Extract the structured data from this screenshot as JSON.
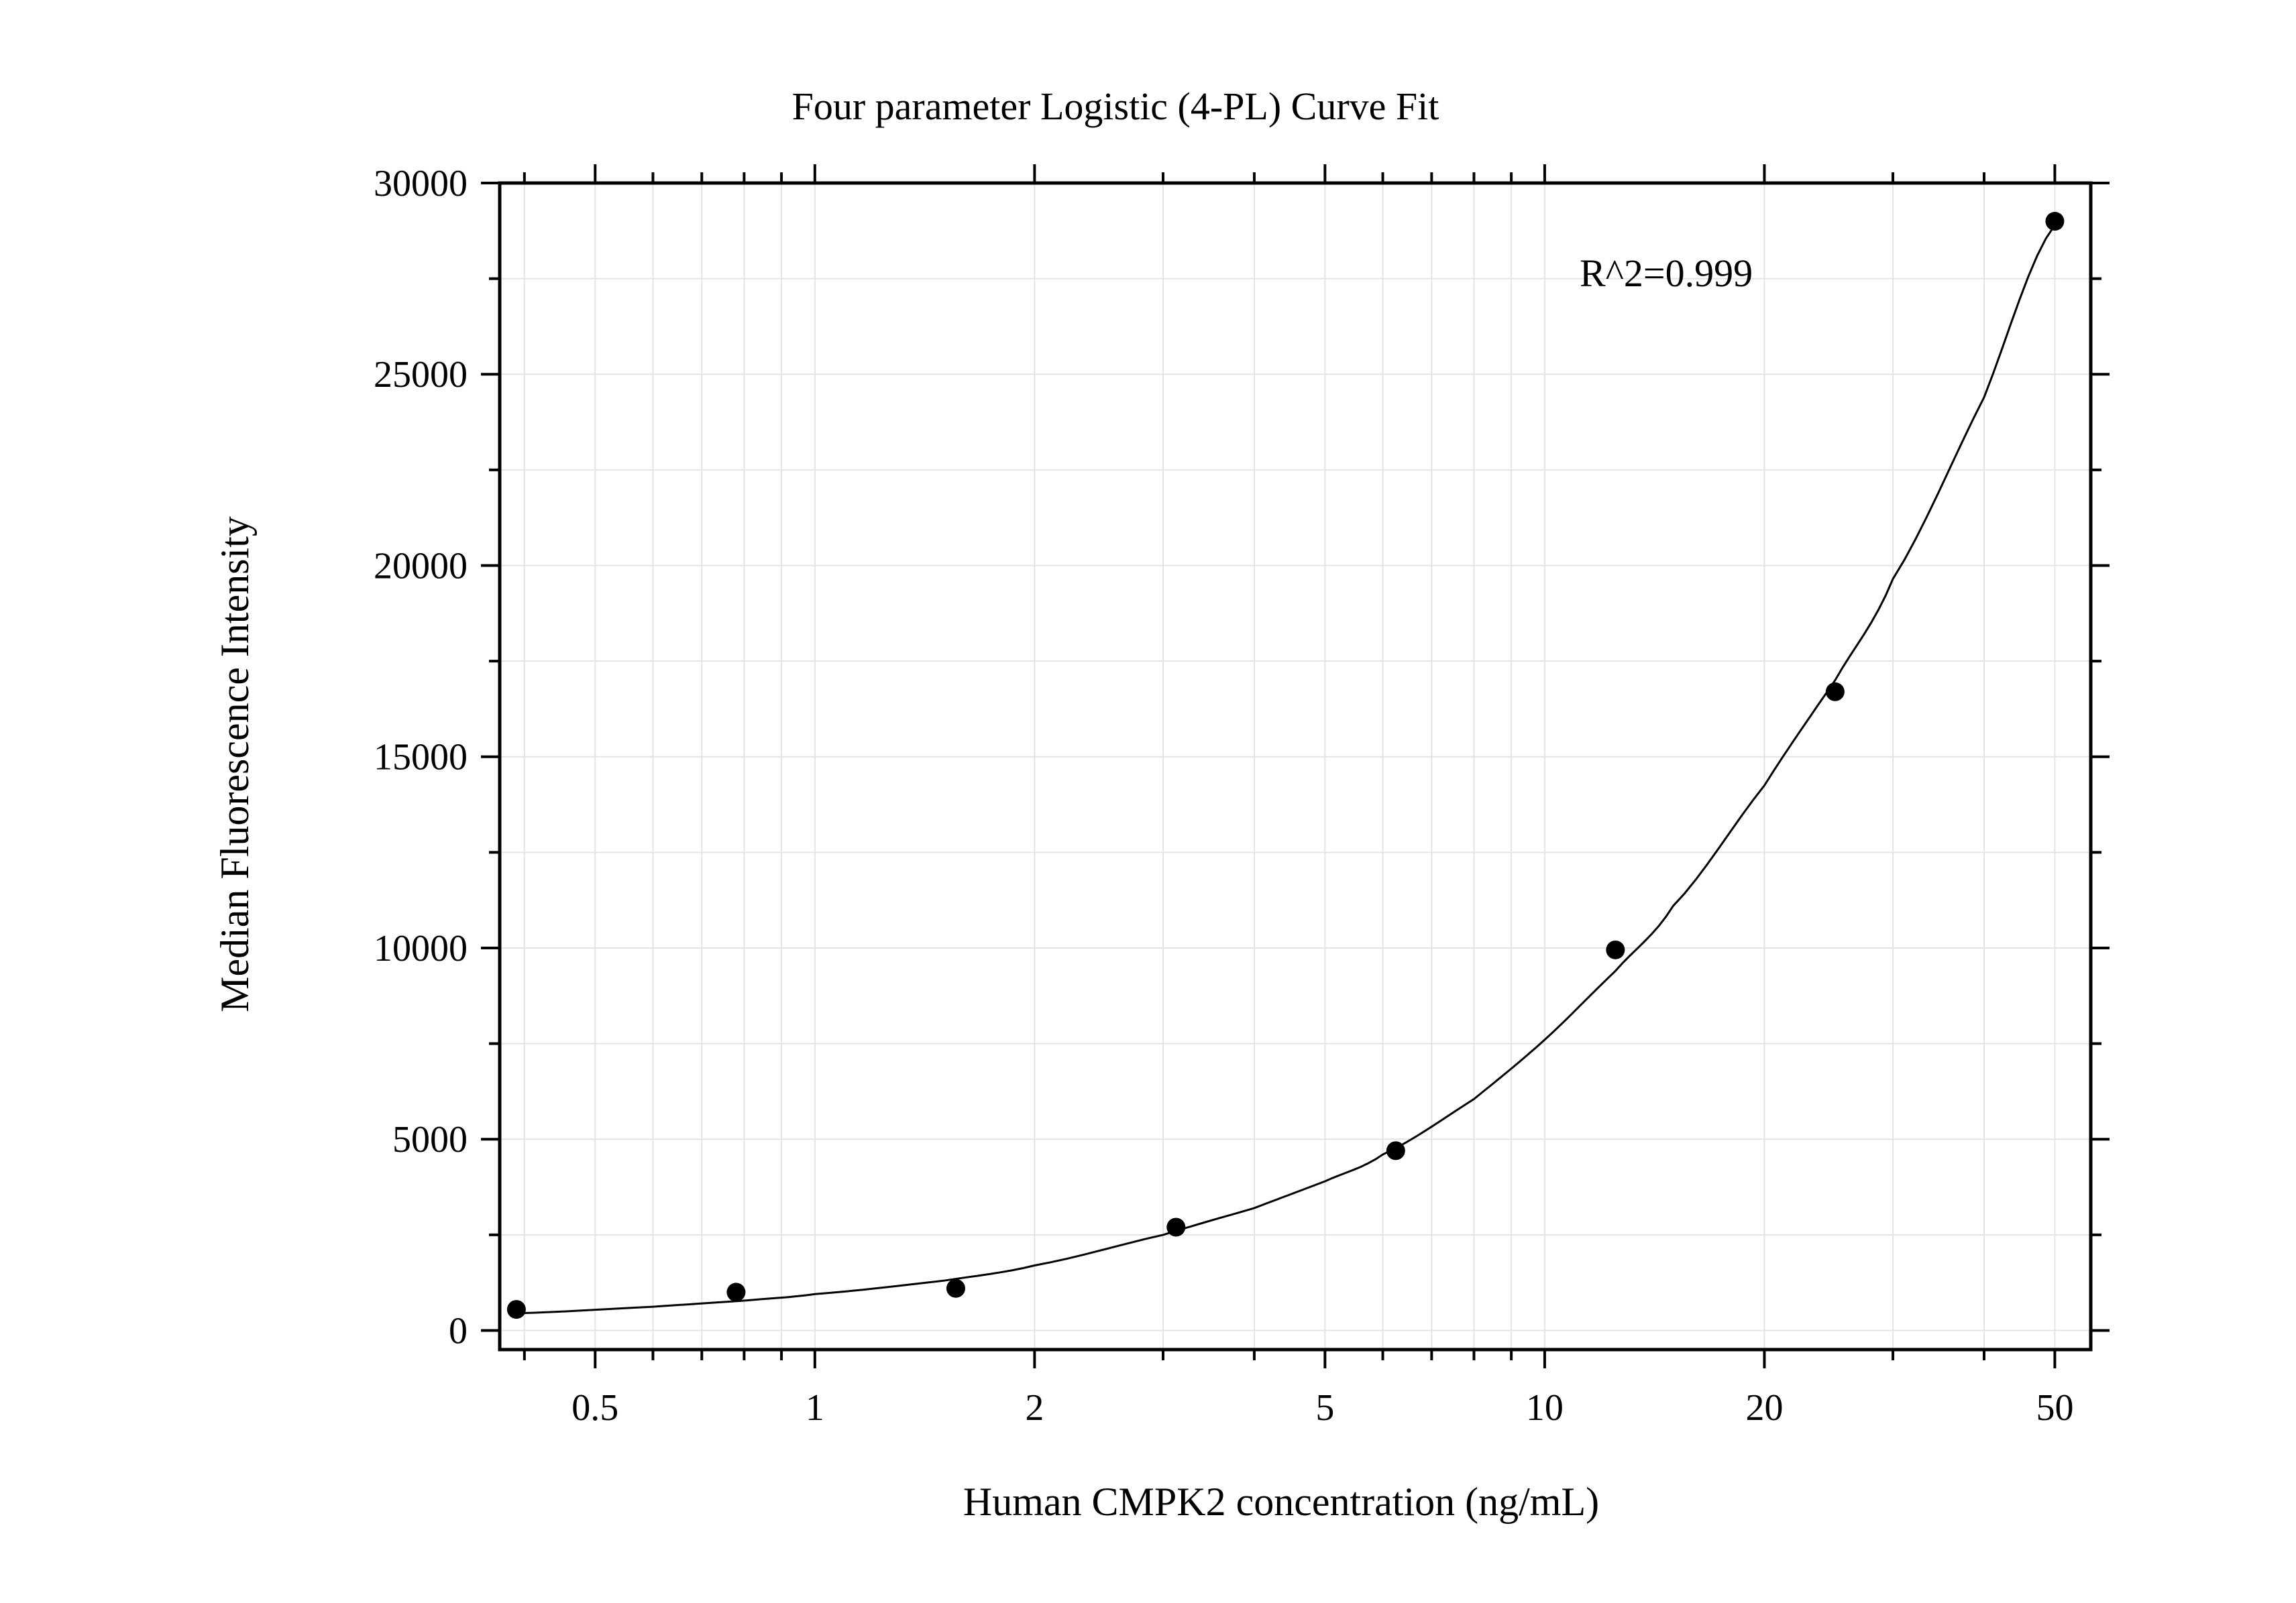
{
  "chart_data": {
    "type": "scatter",
    "title": "Four parameter Logistic (4-PL) Curve Fit",
    "xlabel": "Human CMPK2 concentration (ng/mL)",
    "ylabel": "Median Fluorescence Intensity",
    "x_scale": "log",
    "xlim": [
      0.37,
      56
    ],
    "ylim": [
      -500,
      30000
    ],
    "x_ticks": [
      0.5,
      1,
      2,
      5,
      10,
      20,
      50
    ],
    "x_tick_labels": [
      "0.5",
      "1",
      "2",
      "5",
      "10",
      "20",
      "50"
    ],
    "y_ticks": [
      0,
      5000,
      10000,
      15000,
      20000,
      25000,
      30000
    ],
    "y_tick_labels": [
      "0",
      "5000",
      "10000",
      "15000",
      "20000",
      "25000",
      "30000"
    ],
    "grid": true,
    "annotation": "R^2=0.999",
    "series": [
      {
        "points": [
          {
            "x": 0.39,
            "y": 550
          },
          {
            "x": 0.78,
            "y": 1000
          },
          {
            "x": 1.56,
            "y": 1100
          },
          {
            "x": 3.125,
            "y": 2700
          },
          {
            "x": 6.25,
            "y": 4700
          },
          {
            "x": 12.5,
            "y": 9950
          },
          {
            "x": 25,
            "y": 16700
          },
          {
            "x": 50,
            "y": 29000
          }
        ]
      }
    ],
    "fit_curve": {
      "x": [
        0.39,
        0.6,
        0.8,
        1,
        1.5,
        2,
        3,
        4,
        5,
        6,
        8,
        10,
        12.5,
        15,
        20,
        25,
        30,
        40,
        50
      ],
      "y": [
        450,
        620,
        780,
        950,
        1300,
        1700,
        2500,
        3200,
        3900,
        4600,
        6050,
        7600,
        9400,
        11100,
        14250,
        17000,
        19650,
        24400,
        28900
      ]
    }
  }
}
